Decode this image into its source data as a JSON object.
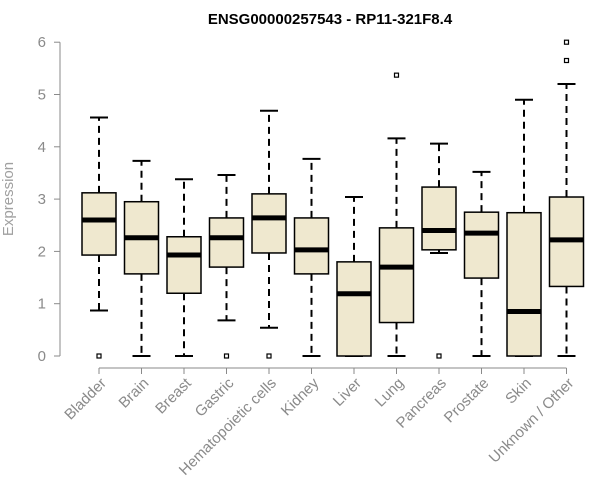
{
  "chart_data": {
    "type": "boxplot",
    "title": "ENSG00000257543 - RP11-321F8.4",
    "xlabel": "",
    "ylabel": "Expression",
    "ylim": [
      0,
      6
    ],
    "yticks": [
      0,
      1,
      2,
      3,
      4,
      5,
      6
    ],
    "grid": false,
    "box_fill": "#efe8cf",
    "box_stroke": "#000000",
    "axis_color": "#8a8a8a",
    "categories": [
      "Bladder",
      "Brain",
      "Breast",
      "Gastric",
      "Hematopoietic cells",
      "Kidney",
      "Liver",
      "Lung",
      "Pancreas",
      "Prostate",
      "Skin",
      "Unknown / Other"
    ],
    "boxes": [
      {
        "whisker_low": 0.87,
        "q1": 1.93,
        "median": 2.6,
        "q3": 3.12,
        "whisker_high": 4.56,
        "outliers": [
          0.0
        ]
      },
      {
        "whisker_low": 0.0,
        "q1": 1.57,
        "median": 2.26,
        "q3": 2.95,
        "whisker_high": 3.73,
        "outliers": []
      },
      {
        "whisker_low": 0.0,
        "q1": 1.2,
        "median": 1.93,
        "q3": 2.28,
        "whisker_high": 3.38,
        "outliers": []
      },
      {
        "whisker_low": 0.68,
        "q1": 1.7,
        "median": 2.26,
        "q3": 2.64,
        "whisker_high": 3.46,
        "outliers": [
          0.0
        ]
      },
      {
        "whisker_low": 0.54,
        "q1": 1.97,
        "median": 2.64,
        "q3": 3.1,
        "whisker_high": 4.69,
        "outliers": [
          0.0
        ]
      },
      {
        "whisker_low": 0.0,
        "q1": 1.57,
        "median": 2.03,
        "q3": 2.64,
        "whisker_high": 3.77,
        "outliers": []
      },
      {
        "whisker_low": 0.0,
        "q1": 0.0,
        "median": 1.19,
        "q3": 1.8,
        "whisker_high": 3.04,
        "outliers": []
      },
      {
        "whisker_low": 0.0,
        "q1": 0.64,
        "median": 1.7,
        "q3": 2.45,
        "whisker_high": 4.16,
        "outliers": [
          5.37
        ]
      },
      {
        "whisker_low": 1.97,
        "q1": 2.03,
        "median": 2.4,
        "q3": 3.23,
        "whisker_high": 4.06,
        "outliers": [
          0.0
        ]
      },
      {
        "whisker_low": 0.0,
        "q1": 1.49,
        "median": 2.35,
        "q3": 2.75,
        "whisker_high": 3.52,
        "outliers": []
      },
      {
        "whisker_low": 0.0,
        "q1": 0.0,
        "median": 0.85,
        "q3": 2.74,
        "whisker_high": 4.9,
        "outliers": []
      },
      {
        "whisker_low": 0.0,
        "q1": 1.33,
        "median": 2.22,
        "q3": 3.04,
        "whisker_high": 5.2,
        "outliers": [
          5.65,
          6.0
        ]
      }
    ]
  }
}
